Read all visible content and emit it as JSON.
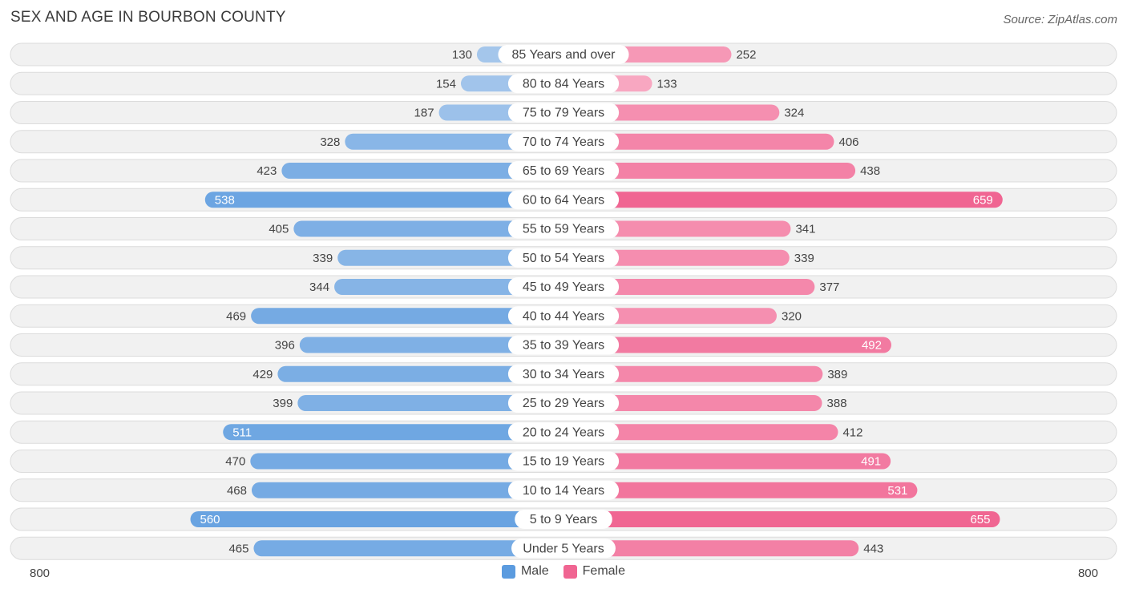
{
  "title": "SEX AND AGE IN BOURBON COUNTY",
  "source": "Source: ZipAtlas.com",
  "legend": {
    "male": "Male",
    "female": "Female"
  },
  "axis": {
    "left_label": "800",
    "right_label": "800"
  },
  "colors": {
    "male_light": "#a8c8ec",
    "male_dark": "#5b9bdf",
    "female_light": "#f8abc4",
    "female_dark": "#f06592",
    "row_bg": "#f1f1f1",
    "row_border": "#dcdcdc"
  },
  "chart_data": {
    "type": "bar",
    "orientation": "horizontal-diverging",
    "xlim": [
      -800,
      800
    ],
    "categories": [
      "85 Years and over",
      "80 to 84 Years",
      "75 to 79 Years",
      "70 to 74 Years",
      "65 to 69 Years",
      "60 to 64 Years",
      "55 to 59 Years",
      "50 to 54 Years",
      "45 to 49 Years",
      "40 to 44 Years",
      "35 to 39 Years",
      "30 to 34 Years",
      "25 to 29 Years",
      "20 to 24 Years",
      "15 to 19 Years",
      "10 to 14 Years",
      "5 to 9 Years",
      "Under 5 Years"
    ],
    "series": [
      {
        "name": "Male",
        "values": [
          130,
          154,
          187,
          328,
          423,
          538,
          405,
          339,
          344,
          469,
          396,
          429,
          399,
          511,
          470,
          468,
          560,
          465
        ]
      },
      {
        "name": "Female",
        "values": [
          252,
          133,
          324,
          406,
          438,
          659,
          341,
          339,
          377,
          320,
          492,
          389,
          388,
          412,
          491,
          531,
          655,
          443
        ]
      }
    ],
    "legend_position": "bottom-center"
  }
}
